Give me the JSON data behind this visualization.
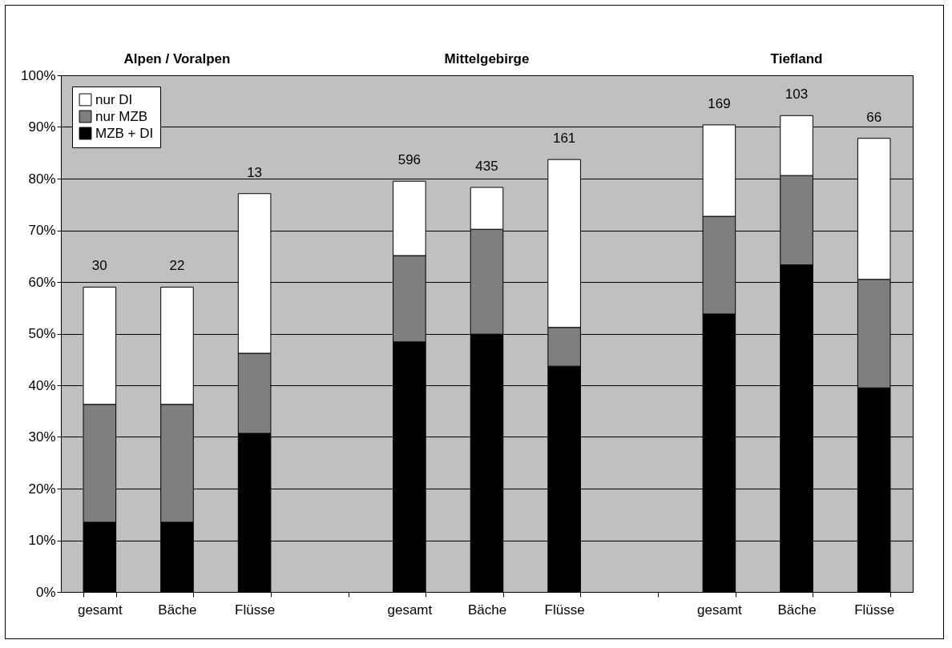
{
  "chart_data": {
    "type": "bar",
    "stacked": true,
    "categories": [
      "gesamt",
      "Bäche",
      "Flüsse",
      null,
      "gesamt",
      "Bäche",
      "Flüsse",
      null,
      "gesamt",
      "Bäche",
      "Flüsse"
    ],
    "series": [
      {
        "name": "MZB + DI",
        "color": "#000000",
        "values": [
          13.5,
          13.5,
          30.7,
          null,
          48.4,
          49.9,
          43.7,
          null,
          53.8,
          63.3,
          39.5
        ]
      },
      {
        "name": "nur MZB",
        "color": "#7f7f7f",
        "values": [
          22.8,
          22.8,
          15.5,
          null,
          16.7,
          20.3,
          7.5,
          null,
          18.9,
          17.3,
          21.0
        ]
      },
      {
        "name": "nur DI",
        "color": "#ffffff",
        "values": [
          22.7,
          22.7,
          30.9,
          null,
          14.4,
          8.1,
          32.5,
          null,
          17.7,
          11.6,
          27.3
        ]
      }
    ],
    "annotations": [
      "Alpen / Voralpen",
      "Mittelgebirge",
      "Tiefland",
      "30",
      "22",
      "13",
      "596",
      "435",
      "161",
      "169",
      "103",
      "66"
    ],
    "ylim": [
      0,
      100
    ],
    "yticks": [
      {
        "value": 0,
        "label": "0%"
      },
      {
        "value": 10,
        "label": "10%"
      },
      {
        "value": 20,
        "label": "20%"
      },
      {
        "value": 30,
        "label": "30%"
      },
      {
        "value": 40,
        "label": "40%"
      },
      {
        "value": 50,
        "label": "50%"
      },
      {
        "value": 60,
        "label": "60%"
      },
      {
        "value": 70,
        "label": "70%"
      },
      {
        "value": 80,
        "label": "80%"
      },
      {
        "value": 90,
        "label": "90%"
      },
      {
        "value": 100,
        "label": "100%"
      }
    ],
    "grid": "y",
    "legend": "top left"
  }
}
